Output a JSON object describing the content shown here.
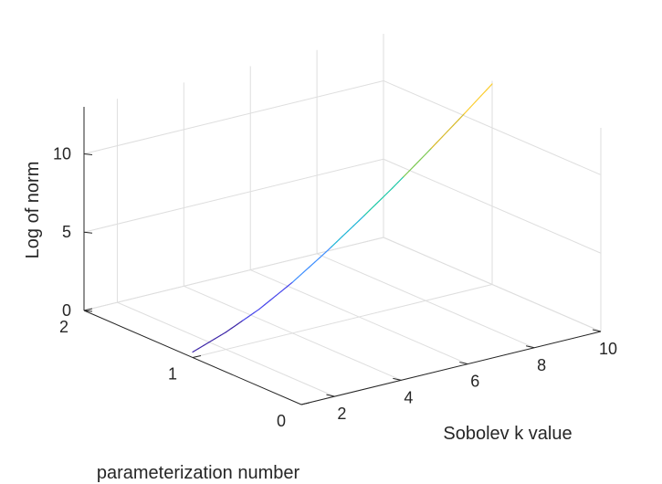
{
  "chart_data": {
    "type": "line",
    "projection": "3d",
    "xlabel": "Sobolev k value",
    "ylabel": "parameterization number",
    "zlabel": "Log of norm",
    "xlim": [
      1,
      10
    ],
    "ylim": [
      0,
      2
    ],
    "zlim": [
      0,
      13
    ],
    "x_ticks": [
      "2",
      "4",
      "6",
      "8",
      "10"
    ],
    "y_ticks": [
      "0",
      "1",
      "2"
    ],
    "z_ticks": [
      "0",
      "5",
      "10"
    ],
    "grid": true,
    "colormap": [
      "#3d26a8",
      "#4746eb",
      "#3f8ffe",
      "#1fb5d6",
      "#1ec8a7",
      "#7cc852",
      "#d7ba2a",
      "#fbcd2f"
    ],
    "series": [
      {
        "y": 1,
        "x": [
          1,
          2,
          3,
          4,
          5,
          6,
          7,
          8,
          9,
          10
        ],
        "z": [
          0.35,
          1.1,
          2.05,
          3.25,
          4.65,
          6.15,
          7.7,
          9.35,
          11.05,
          12.8
        ]
      }
    ]
  }
}
